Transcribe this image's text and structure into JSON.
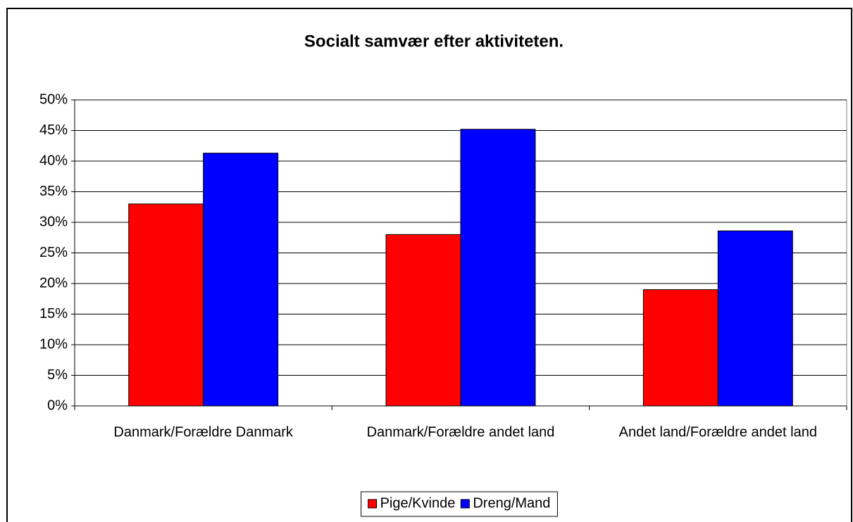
{
  "chart_data": {
    "type": "bar",
    "title": "Socialt samvær efter aktiviteten.",
    "categories": [
      "Danmark/Forældre Danmark",
      "Danmark/Forældre andet land",
      "Andet land/Forældre andet land"
    ],
    "series": [
      {
        "name": "Pige/Kvinde",
        "color": "#ff0000",
        "values": [
          33,
          28,
          19
        ]
      },
      {
        "name": "Dreng/Mand",
        "color": "#0000ff",
        "values": [
          41.3,
          45.2,
          28.6
        ]
      }
    ],
    "ylim": [
      0,
      50
    ],
    "yticks": [
      {
        "value": 0,
        "label": "0%"
      },
      {
        "value": 5,
        "label": "5%"
      },
      {
        "value": 10,
        "label": "10%"
      },
      {
        "value": 15,
        "label": "15%"
      },
      {
        "value": 20,
        "label": "20%"
      },
      {
        "value": 25,
        "label": "25%"
      },
      {
        "value": 30,
        "label": "30%"
      },
      {
        "value": 35,
        "label": "35%"
      },
      {
        "value": 40,
        "label": "40%"
      },
      {
        "value": 45,
        "label": "45%"
      },
      {
        "value": 50,
        "label": "50%"
      }
    ],
    "grid": true,
    "legend": "bottom"
  }
}
